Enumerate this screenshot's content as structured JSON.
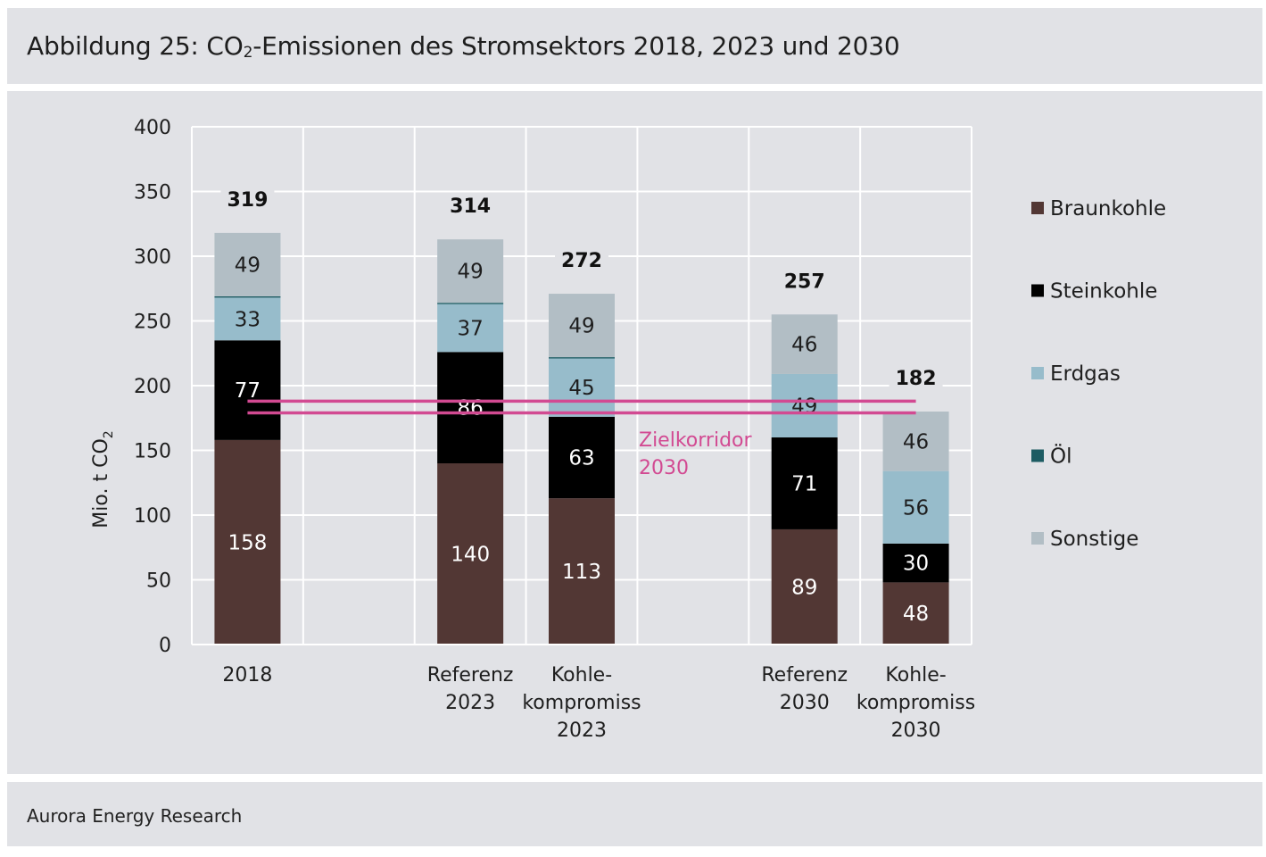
{
  "figure": {
    "title_prefix": "Abbildung 25: CO",
    "title_sub": "2",
    "title_suffix": "-Emissionen des Stromsektors 2018, 2023 und 2030",
    "source": "Aurora Energy Research"
  },
  "chart_data": {
    "type": "bar",
    "stacked": true,
    "ylabel": "Mio. t CO",
    "ylabel_sub": "2",
    "ylim": [
      0,
      400
    ],
    "yticks": [
      0,
      50,
      100,
      150,
      200,
      250,
      300,
      350,
      400
    ],
    "grid": true,
    "legend_position": "right",
    "slots": 7,
    "categories": [
      {
        "slot": 0,
        "lines": [
          "2018"
        ]
      },
      {
        "slot": 2,
        "lines": [
          "Referenz",
          "2023"
        ]
      },
      {
        "slot": 3,
        "lines": [
          "Kohle-",
          "kompromiss",
          "2023"
        ]
      },
      {
        "slot": 5,
        "lines": [
          "Referenz",
          "2030"
        ]
      },
      {
        "slot": 6,
        "lines": [
          "Kohle-",
          "kompromiss",
          "2030"
        ]
      }
    ],
    "totals": [
      "319",
      "314",
      "272",
      "257",
      "182"
    ],
    "series": [
      {
        "name": "Braunkohle",
        "color": "#523734",
        "label_color": "#ffffff",
        "values": [
          158,
          140,
          113,
          89,
          48
        ]
      },
      {
        "name": "Steinkohle",
        "color": "#000000",
        "label_color": "#ffffff",
        "values": [
          77,
          86,
          63,
          71,
          30
        ]
      },
      {
        "name": "Erdgas",
        "color": "#97bccb",
        "label_color": "#1e1e1e",
        "values": [
          33,
          37,
          45,
          49,
          56
        ]
      },
      {
        "name": "Öl",
        "color": "#1d5c63",
        "label_color": "#ffffff",
        "values": [
          1,
          1,
          1,
          0,
          0
        ]
      },
      {
        "name": "Sonstige",
        "color": "#b2bec5",
        "label_color": "#1e1e1e",
        "values": [
          49,
          49,
          49,
          46,
          46
        ]
      }
    ],
    "label_series": [
      "Braunkohle",
      "Steinkohle",
      "Erdgas",
      "Sonstige"
    ],
    "target_corridor": {
      "label_lines": [
        "Zielkorridor",
        "2030"
      ],
      "values": [
        179,
        188
      ],
      "color": "#d24a92"
    }
  }
}
